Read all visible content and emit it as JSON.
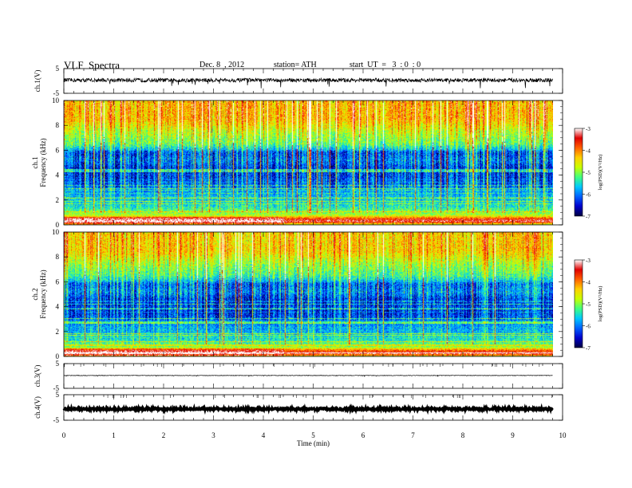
{
  "header": {
    "title": "VLF  Spectra",
    "date": "Dec. 8  , 2012",
    "station": "station= ATH",
    "start": "start  UT  =   3  : 0  : 0"
  },
  "colors": {
    "colormap": [
      "#000040",
      "#0000cc",
      "#0060ff",
      "#00c8ff",
      "#40ff80",
      "#c8ff00",
      "#ffd000",
      "#ff6000",
      "#e00000",
      "#ffffff"
    ],
    "trace": "#000000"
  },
  "chart_data": [
    {
      "type": "line",
      "panel": "ch1-waveform",
      "ylabel": "ch.1(V)",
      "ylim": [
        -5,
        5
      ],
      "yticks": [
        "5",
        "-5"
      ],
      "xlim": [
        0,
        10
      ],
      "baseline_v": 0.3,
      "noise_amplitude_v": 0.8,
      "spike_amplitude_v": 3.5,
      "end_time_min": 9.8
    },
    {
      "type": "heatmap",
      "panel": "ch1-spectrogram",
      "ylabel": "ch.1\nFrequency  (kHz)",
      "ylim": [
        0,
        10
      ],
      "yticks": [
        "0",
        "2",
        "4",
        "6",
        "8",
        "10"
      ],
      "xlim": [
        0,
        10
      ],
      "end_time_min": 9.8,
      "colorbar": {
        "label": "log(PSD)(V²/Hz)",
        "range": [
          -7,
          -3
        ],
        "ticks": [
          "-3",
          "-4",
          "-5",
          "-6",
          "-7"
        ]
      },
      "level_profile": {
        "freq_khz": [
          0,
          0.3,
          0.5,
          0.8,
          1.5,
          2.5,
          3.5,
          4.5,
          5.2,
          5.8,
          6.5,
          7.5,
          8.5,
          10
        ],
        "log_psd": [
          -5.0,
          -3.3,
          -3.6,
          -4.8,
          -5.5,
          -5.8,
          -6.1,
          -6.3,
          -5.9,
          -6.1,
          -5.2,
          -4.8,
          -4.3,
          -4.3
        ]
      }
    },
    {
      "type": "heatmap",
      "panel": "ch2-spectrogram",
      "ylabel": "ch.2\nFrequency  (kHz)",
      "ylim": [
        0,
        10
      ],
      "yticks": [
        "0",
        "2",
        "4",
        "6",
        "8",
        "10"
      ],
      "xlim": [
        0,
        10
      ],
      "end_time_min": 9.8,
      "colorbar": {
        "label": "log(PSD)(V²/Hz)",
        "range": [
          -7,
          -3
        ],
        "ticks": [
          "-3",
          "-4",
          "-5",
          "-6",
          "-7"
        ]
      },
      "level_profile": {
        "freq_khz": [
          0,
          0.3,
          0.5,
          0.8,
          1.5,
          2.5,
          3.5,
          4.5,
          5.2,
          5.8,
          6.5,
          7.5,
          8.5,
          10
        ],
        "log_psd": [
          -5.0,
          -3.5,
          -3.8,
          -5.0,
          -5.6,
          -5.9,
          -6.2,
          -6.3,
          -5.8,
          -6.0,
          -5.3,
          -4.9,
          -4.4,
          -4.4
        ]
      }
    },
    {
      "type": "line",
      "panel": "ch3-waveform",
      "ylabel": "ch.3(V)",
      "ylim": [
        -5,
        5
      ],
      "yticks": [
        "5",
        "-5"
      ],
      "xlim": [
        0,
        10
      ],
      "baseline_v": 0.2,
      "noise_amplitude_v": 0.1,
      "spike_amplitude_v": 0.4,
      "end_time_min": 9.8
    },
    {
      "type": "line",
      "panel": "ch4-waveform",
      "ylabel": "ch.4(V)",
      "ylim": [
        -5,
        5
      ],
      "yticks": [
        "5",
        "-5"
      ],
      "xlim": [
        0,
        10
      ],
      "baseline_v": -0.6,
      "noise_amplitude_v": 0.35,
      "spike_amplitude_v": 0.0,
      "end_time_min": 9.8
    }
  ],
  "x_axis": {
    "label": "Time  (min)",
    "range": [
      0,
      10
    ],
    "ticks": [
      "0",
      "1",
      "2",
      "3",
      "4",
      "5",
      "6",
      "7",
      "8",
      "9",
      "10"
    ]
  }
}
